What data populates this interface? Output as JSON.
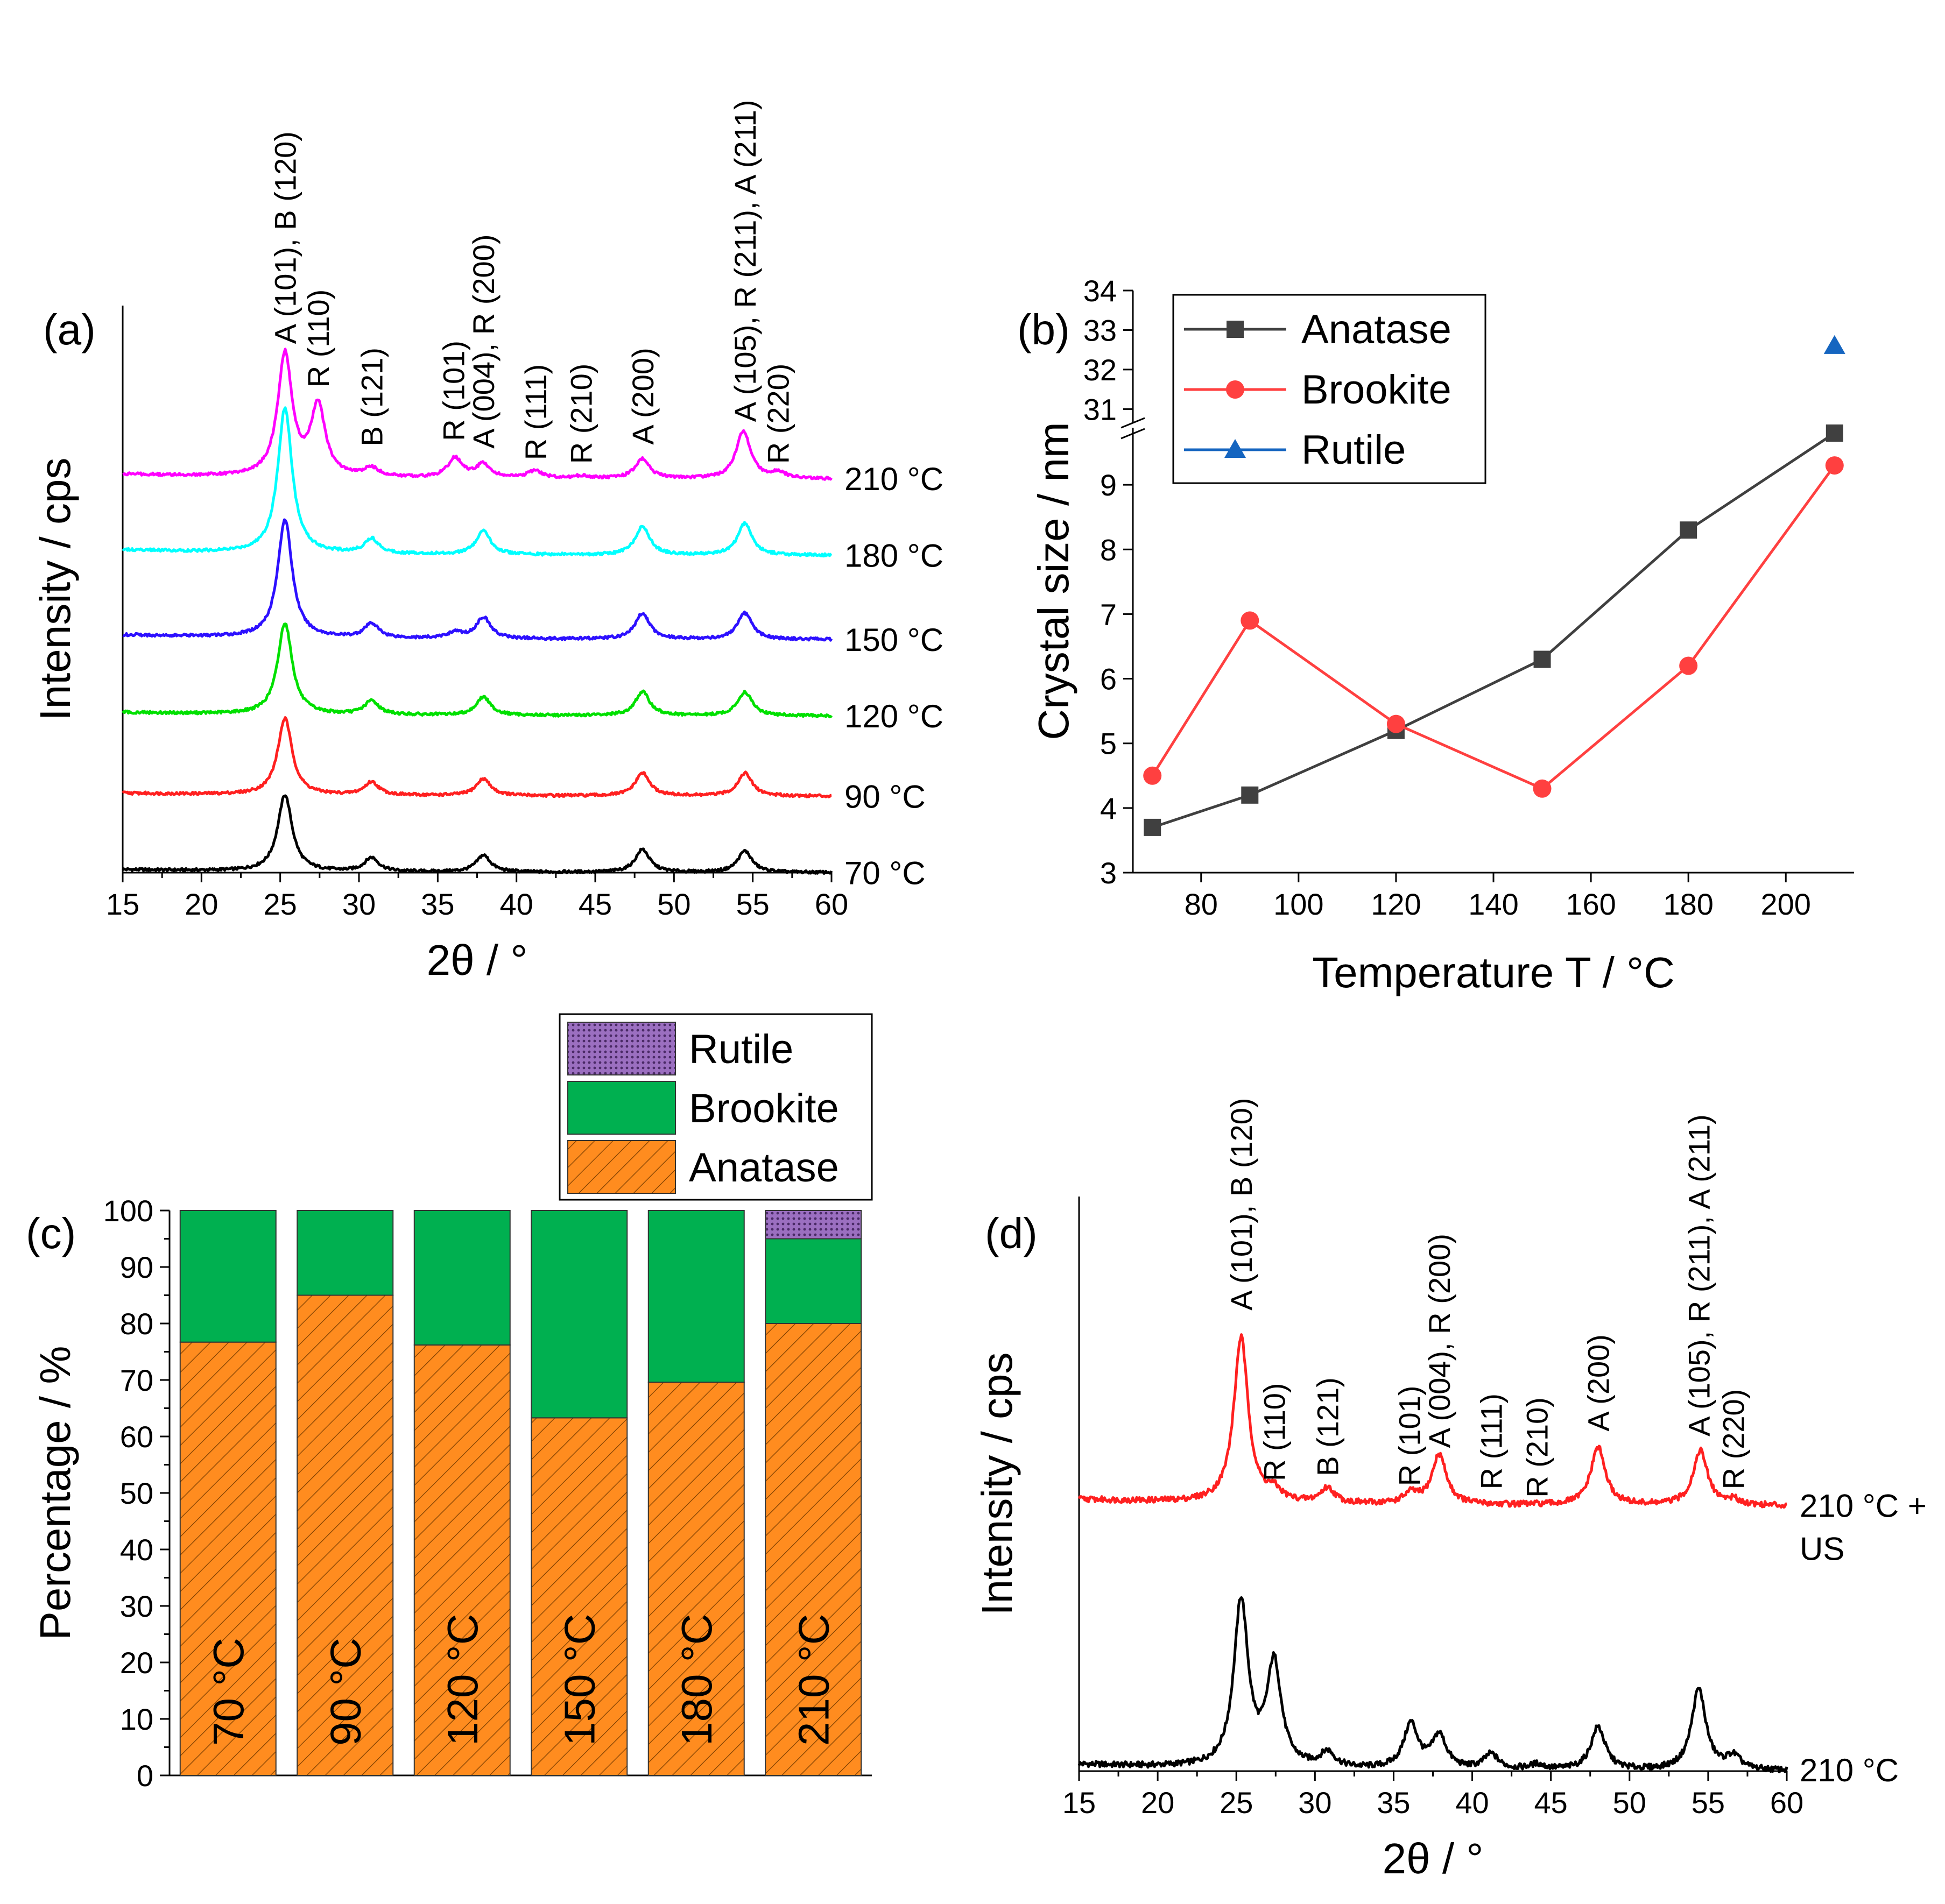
{
  "colors": {
    "anatase": "#ff8c1f",
    "brookite": "#00b050",
    "rutile": "#7b4f9e",
    "anatase_line": "#404040",
    "brookite_line": "#ff4040",
    "rutile_marker": "#1565c0",
    "t70": "#000000",
    "t90": "#ff2020",
    "t120": "#00e000",
    "t150": "#2d10ff",
    "t180": "#00ffff",
    "t210": "#ff00ff"
  },
  "panel_labels": {
    "a": "(a)",
    "b": "(b)",
    "c": "(c)",
    "d": "(d)"
  },
  "chart_data": [
    {
      "id": "a",
      "type": "line",
      "xlabel": "2θ / °",
      "ylabel": "Intensity / cps",
      "xlim": [
        15,
        60
      ],
      "xticks": [
        "15",
        "20",
        "25",
        "30",
        "35",
        "40",
        "45",
        "50",
        "55",
        "60"
      ],
      "series": [
        {
          "name": "70 °C",
          "label": "70 °C",
          "color_key": "t70",
          "baseline": 0.0,
          "height": 1.0,
          "peaks": [
            [
              25.3,
              1.0
            ],
            [
              30.8,
              0.18
            ],
            [
              37.9,
              0.22
            ],
            [
              48.0,
              0.3
            ],
            [
              54.5,
              0.28
            ]
          ]
        },
        {
          "name": "90 °C",
          "label": "90 °C",
          "color_key": "t90",
          "baseline": 1.0,
          "height": 1.0,
          "peaks": [
            [
              25.3,
              1.0
            ],
            [
              30.8,
              0.17
            ],
            [
              37.9,
              0.22
            ],
            [
              48.0,
              0.3
            ],
            [
              54.5,
              0.3
            ]
          ]
        },
        {
          "name": "120 °C",
          "label": "120 °C",
          "color_key": "t120",
          "baseline": 2.05,
          "height": 1.2,
          "peaks": [
            [
              25.3,
              1.0
            ],
            [
              30.8,
              0.15
            ],
            [
              37.9,
              0.2
            ],
            [
              48.0,
              0.26
            ],
            [
              54.5,
              0.26
            ]
          ]
        },
        {
          "name": "150 °C",
          "label": "150 °C",
          "color_key": "t150",
          "baseline": 3.05,
          "height": 1.55,
          "peaks": [
            [
              25.3,
              1.0
            ],
            [
              30.8,
              0.12
            ],
            [
              36.1,
              0.05
            ],
            [
              37.9,
              0.18
            ],
            [
              48.0,
              0.22
            ],
            [
              54.5,
              0.22
            ]
          ]
        },
        {
          "name": "180 °C",
          "label": "180 °C",
          "color_key": "t180",
          "baseline": 4.15,
          "height": 1.9,
          "peaks": [
            [
              25.3,
              1.0
            ],
            [
              30.8,
              0.1
            ],
            [
              37.9,
              0.16
            ],
            [
              48.0,
              0.2
            ],
            [
              54.5,
              0.22
            ]
          ]
        },
        {
          "name": "210 °C",
          "label": "210 °C",
          "color_key": "t210",
          "baseline": 5.15,
          "height": 1.6,
          "peaks": [
            [
              25.3,
              1.0
            ],
            [
              27.4,
              0.57
            ],
            [
              30.8,
              0.07
            ],
            [
              36.1,
              0.16
            ],
            [
              37.9,
              0.11
            ],
            [
              41.2,
              0.06
            ],
            [
              44.1,
              0.02
            ],
            [
              48.0,
              0.16
            ],
            [
              54.4,
              0.39
            ],
            [
              56.6,
              0.05
            ]
          ]
        }
      ],
      "annotations": [
        {
          "text": "A (101), B (120)",
          "x": 25.3,
          "level": 6.92
        },
        {
          "text": "R (110)",
          "x": 27.4,
          "level": 6.35
        },
        {
          "text": "B (121)",
          "x": 30.8,
          "level": 5.58
        },
        {
          "text": "R (101)",
          "x": 36.0,
          "level": 5.65
        },
        {
          "text": "A (004), R (200)",
          "x": 37.9,
          "level": 5.55
        },
        {
          "text": "R (111)",
          "x": 41.2,
          "level": 5.4
        },
        {
          "text": "R (210)",
          "x": 44.1,
          "level": 5.35
        },
        {
          "text": "A (200)",
          "x": 48.0,
          "level": 5.6
        },
        {
          "text": "A (105), R (211), A (211)",
          "x": 54.5,
          "level": 5.9
        },
        {
          "text": "R (220)",
          "x": 56.6,
          "level": 5.35
        }
      ]
    },
    {
      "id": "b",
      "type": "line",
      "xlabel": "Temperature T / °C",
      "ylabel": "Crystal size / nm",
      "xlim": [
        66,
        214
      ],
      "ylim_lower": [
        3,
        9.8
      ],
      "ylim_upper": [
        30.8,
        34
      ],
      "xticks": [
        "80",
        "100",
        "120",
        "140",
        "160",
        "180",
        "200"
      ],
      "yticks_lower": [
        "3",
        "4",
        "5",
        "6",
        "7",
        "8",
        "9"
      ],
      "yticks_upper": [
        "31",
        "32",
        "33",
        "34"
      ],
      "series": [
        {
          "name": "Anatase",
          "marker": "square",
          "color_key": "anatase_line",
          "x": [
            70,
            90,
            120,
            150,
            180,
            210
          ],
          "y": [
            3.7,
            4.2,
            5.2,
            6.3,
            8.3,
            9.8
          ]
        },
        {
          "name": "Brookite",
          "marker": "circle",
          "color_key": "brookite_line",
          "x": [
            70,
            90,
            120,
            150,
            180,
            210
          ],
          "y": [
            4.5,
            6.9,
            5.3,
            4.3,
            6.2,
            9.3
          ]
        },
        {
          "name": "Rutile",
          "marker": "triangle",
          "color_key": "rutile_marker",
          "x": [
            210
          ],
          "y": [
            32.6
          ]
        }
      ]
    },
    {
      "id": "c",
      "type": "bar",
      "stacked": true,
      "ylabel": "Percentage / %",
      "ylim": [
        0,
        100
      ],
      "yticks": [
        "0",
        "10",
        "20",
        "30",
        "40",
        "50",
        "60",
        "70",
        "80",
        "90",
        "100"
      ],
      "categories": [
        "70 °C",
        "90 °C",
        "120 °C",
        "150 °C",
        "180 °C",
        "210 °C"
      ],
      "legend_items": [
        "Rutile",
        "Brookite",
        "Anatase"
      ],
      "series": [
        {
          "name": "Anatase",
          "color_key": "anatase",
          "values": [
            76.7,
            85.0,
            76.2,
            63.3,
            69.6,
            80.0
          ]
        },
        {
          "name": "Brookite",
          "color_key": "brookite",
          "values": [
            23.3,
            15.0,
            23.8,
            36.7,
            30.4,
            15.0
          ]
        },
        {
          "name": "Rutile",
          "color_key": "rutile",
          "values": [
            0,
            0,
            0,
            0,
            0,
            5.0
          ]
        }
      ]
    },
    {
      "id": "d",
      "type": "line",
      "xlabel": "2θ / °",
      "ylabel": "Intensity / cps",
      "xlim": [
        15,
        60
      ],
      "xticks": [
        "15",
        "20",
        "25",
        "30",
        "35",
        "40",
        "45",
        "50",
        "55",
        "60"
      ],
      "series": [
        {
          "name": "210 °C",
          "label_lines": [
            "210 °C"
          ],
          "color_key": "t70",
          "baseline": 0.0,
          "height": 1.0,
          "peaks": [
            [
              25.3,
              1.0
            ],
            [
              27.4,
              0.62
            ],
            [
              30.8,
              0.09
            ],
            [
              36.1,
              0.27
            ],
            [
              37.9,
              0.2
            ],
            [
              41.2,
              0.09
            ],
            [
              44.1,
              0.03
            ],
            [
              48.0,
              0.26
            ],
            [
              54.4,
              0.49
            ],
            [
              56.6,
              0.08
            ]
          ]
        },
        {
          "name": "210 °C + US",
          "label_lines": [
            "210 °C +",
            "US"
          ],
          "color_key": "t90",
          "baseline": 1.6,
          "height": 1.0,
          "peaks": [
            [
              25.3,
              1.0
            ],
            [
              27.4,
              0.06
            ],
            [
              30.8,
              0.09
            ],
            [
              36.1,
              0.06
            ],
            [
              37.9,
              0.3
            ],
            [
              48.0,
              0.35
            ],
            [
              54.5,
              0.33
            ],
            [
              56.6,
              0.03
            ]
          ]
        }
      ],
      "annotations": [
        {
          "text": "A (101), B (120)",
          "x": 25.3,
          "level": 2.78
        },
        {
          "text": "R (110)",
          "x": 27.4,
          "level": 1.75
        },
        {
          "text": "B (121)",
          "x": 30.8,
          "level": 1.78
        },
        {
          "text": "R (101)",
          "x": 36.0,
          "level": 1.72
        },
        {
          "text": "A (004), R (200)",
          "x": 37.9,
          "level": 1.95
        },
        {
          "text": "R (111)",
          "x": 41.2,
          "level": 1.7
        },
        {
          "text": "R (210)",
          "x": 44.1,
          "level": 1.65
        },
        {
          "text": "A (200)",
          "x": 48.0,
          "level": 2.05
        },
        {
          "text": "A (105), R (211), A (211)",
          "x": 54.4,
          "level": 2.02
        },
        {
          "text": "R (220)",
          "x": 56.6,
          "level": 1.7
        }
      ]
    }
  ]
}
